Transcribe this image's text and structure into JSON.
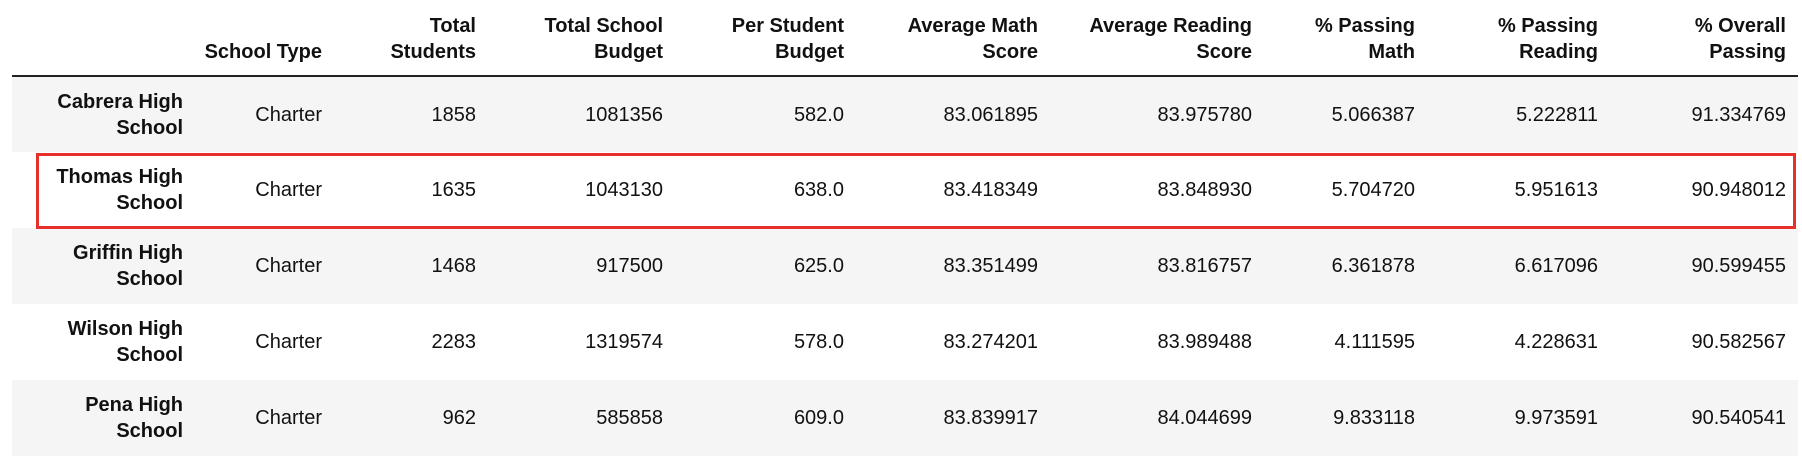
{
  "table": {
    "headers": [
      "",
      "School Type",
      "Total Students",
      "Total School Budget",
      "Per Student Budget",
      "Average Math Score",
      "Average Reading Score",
      "% Passing Math",
      "% Passing Reading",
      "% Overall Passing"
    ],
    "rows": [
      {
        "name": "Cabrera High School",
        "cells": [
          "Charter",
          "1858",
          "1081356",
          "582.0",
          "83.061895",
          "83.975780",
          "5.066387",
          "5.222811",
          "91.334769"
        ]
      },
      {
        "name": "Thomas High School",
        "cells": [
          "Charter",
          "1635",
          "1043130",
          "638.0",
          "83.418349",
          "83.848930",
          "5.704720",
          "5.951613",
          "90.948012"
        ]
      },
      {
        "name": "Griffin High School",
        "cells": [
          "Charter",
          "1468",
          "917500",
          "625.0",
          "83.351499",
          "83.816757",
          "6.361878",
          "6.617096",
          "90.599455"
        ]
      },
      {
        "name": "Wilson High School",
        "cells": [
          "Charter",
          "2283",
          "1319574",
          "578.0",
          "83.274201",
          "83.989488",
          "4.111595",
          "4.228631",
          "90.582567"
        ]
      },
      {
        "name": "Pena High School",
        "cells": [
          "Charter",
          "962",
          "585858",
          "609.0",
          "83.839917",
          "84.044699",
          "9.833118",
          "9.973591",
          "90.540541"
        ]
      }
    ]
  },
  "highlight": {
    "row_index": 1,
    "color": "#e8302a"
  },
  "colors": {
    "row_stripe": "#f5f5f5",
    "header_rule": "#222222"
  }
}
